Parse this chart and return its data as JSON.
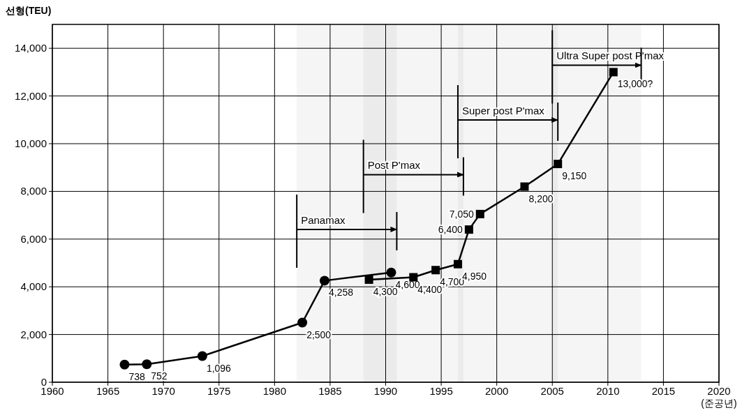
{
  "chart_data": {
    "type": "line",
    "ylabel": "선형(TEU)",
    "xlabel": "(준공년)",
    "xlim": [
      1960,
      2020
    ],
    "xticks": [
      1960,
      1965,
      1970,
      1975,
      1980,
      1985,
      1990,
      1995,
      2000,
      2005,
      2010,
      2015,
      2020
    ],
    "ylim": [
      0,
      15000
    ],
    "yticks": [
      {
        "value": 0,
        "label": "0"
      },
      {
        "value": 2000,
        "label": "2,000"
      },
      {
        "value": 4000,
        "label": "4,000"
      },
      {
        "value": 6000,
        "label": "6,000"
      },
      {
        "value": 8000,
        "label": "8,000"
      },
      {
        "value": 10000,
        "label": "10,000"
      },
      {
        "value": 12000,
        "label": "12,000"
      },
      {
        "value": 14000,
        "label": "14,000"
      }
    ],
    "grid": true,
    "line_style": "solid",
    "series": [
      {
        "color": "#000000",
        "marker": "circle",
        "x": [
          1966.5,
          1968.5,
          1973.5,
          1982.5,
          1984.5,
          1990.5
        ],
        "values": [
          738,
          752,
          1096,
          2500,
          4258,
          4600
        ],
        "value_labels": [
          "738",
          "752",
          "1,096",
          "2,500",
          "4,258",
          "4,600"
        ]
      },
      {
        "color": "#000000",
        "marker": "square",
        "x": [
          1988.5,
          1992.5,
          1994.5,
          1996.5,
          1997.5,
          1998.5,
          2002.5,
          2005.5,
          2010.5
        ],
        "values": [
          4300,
          4400,
          4700,
          4950,
          6400,
          7050,
          8200,
          9150,
          13000
        ],
        "value_labels": [
          "4,300",
          "4,400",
          "4,700",
          "4,950",
          "6,400",
          "7,050",
          "8,200",
          "9,150",
          "13,000?"
        ]
      }
    ],
    "bands": [
      {
        "axis": "x",
        "from": 1982,
        "to": 1991,
        "label": "Panamax",
        "color": "#000000"
      },
      {
        "axis": "x",
        "from": 1988,
        "to": 1997,
        "label": "Post P'max",
        "color": "#000000"
      },
      {
        "axis": "x",
        "from": 1996.5,
        "to": 2005.5,
        "label": "Super post P'max",
        "color": "#000000"
      },
      {
        "axis": "x",
        "from": 2005,
        "to": 2013,
        "label": "Ultra Super post P'max",
        "color": "#000000"
      }
    ]
  }
}
